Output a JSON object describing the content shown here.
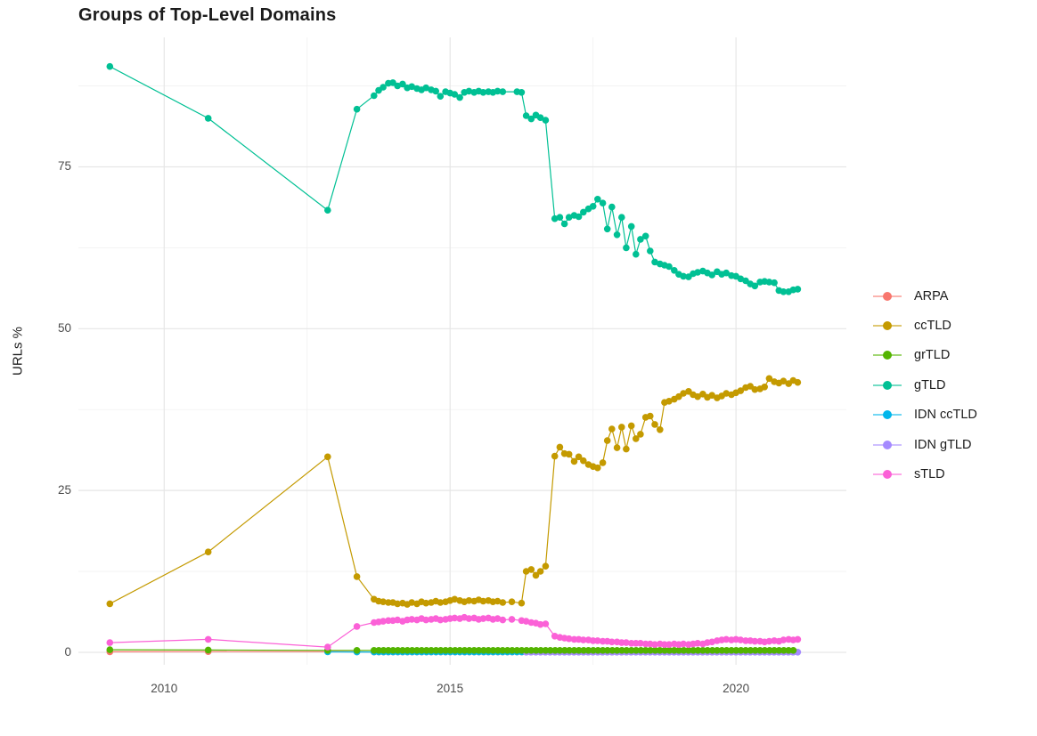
{
  "chart_data": {
    "type": "line",
    "title": "Groups of Top-Level Domains",
    "xlabel": "",
    "ylabel": "URLs %",
    "xlim": [
      2008.5,
      2021.93
    ],
    "ylim": [
      -1.93,
      95
    ],
    "grid": "on",
    "legend_position": "right",
    "x_ticks": [
      2010,
      2015,
      2020
    ],
    "x_tick_labels": [
      "2010",
      "2015",
      "2020"
    ],
    "x_minor_ticks": [
      2012.5,
      2017.5
    ],
    "y_ticks": [
      0,
      25,
      50,
      75
    ],
    "y_tick_labels": [
      "0",
      "25",
      "50",
      "75"
    ],
    "y_minor_ticks": [
      12.5,
      37.5,
      62.5,
      87.5
    ],
    "series": [
      {
        "name": "ARPA",
        "color": "#F8766D",
        "points": [
          [
            2009.05,
            0.08
          ],
          [
            2010.77,
            0.1
          ],
          [
            2012.86,
            0.1
          ],
          [
            2013.37,
            0.08
          ]
        ],
        "runs": [
          {
            "from": 2013.67,
            "to": 2021.08,
            "step": 0.08333,
            "value": 0.05
          }
        ]
      },
      {
        "name": "ccTLD",
        "color": "#C49A00",
        "points": [
          [
            2009.05,
            7.5
          ],
          [
            2010.77,
            15.5
          ],
          [
            2012.86,
            30.2
          ],
          [
            2013.37,
            11.7
          ],
          [
            2013.67,
            8.2
          ],
          [
            2013.75,
            7.9
          ],
          [
            2013.83,
            7.8
          ],
          [
            2013.92,
            7.7
          ],
          [
            2014,
            7.7
          ],
          [
            2014.08,
            7.5
          ],
          [
            2014.17,
            7.6
          ],
          [
            2014.25,
            7.4
          ],
          [
            2014.33,
            7.7
          ],
          [
            2014.42,
            7.5
          ],
          [
            2014.5,
            7.8
          ],
          [
            2014.58,
            7.6
          ],
          [
            2014.67,
            7.7
          ],
          [
            2014.75,
            7.9
          ],
          [
            2014.83,
            7.7
          ],
          [
            2014.92,
            7.8
          ],
          [
            2015,
            8.0
          ],
          [
            2015.08,
            8.2
          ],
          [
            2015.17,
            8.0
          ],
          [
            2015.25,
            7.8
          ],
          [
            2015.33,
            8.0
          ],
          [
            2015.42,
            7.9
          ],
          [
            2015.5,
            8.1
          ],
          [
            2015.58,
            7.9
          ],
          [
            2015.67,
            8.0
          ],
          [
            2015.75,
            7.8
          ],
          [
            2015.83,
            7.9
          ],
          [
            2015.92,
            7.7
          ],
          [
            2016.08,
            7.8
          ],
          [
            2016.25,
            7.6
          ],
          [
            2016.33,
            12.5
          ],
          [
            2016.42,
            12.8
          ],
          [
            2016.5,
            11.9
          ],
          [
            2016.58,
            12.5
          ],
          [
            2016.67,
            13.3
          ],
          [
            2016.83,
            30.3
          ],
          [
            2016.92,
            31.7
          ],
          [
            2017,
            30.7
          ],
          [
            2017.08,
            30.6
          ],
          [
            2017.17,
            29.5
          ],
          [
            2017.25,
            30.2
          ],
          [
            2017.33,
            29.6
          ],
          [
            2017.42,
            29.0
          ],
          [
            2017.5,
            28.7
          ],
          [
            2017.58,
            28.5
          ],
          [
            2017.67,
            29.3
          ],
          [
            2017.75,
            32.7
          ],
          [
            2017.83,
            34.5
          ],
          [
            2017.92,
            31.6
          ],
          [
            2018,
            34.8
          ],
          [
            2018.08,
            31.4
          ],
          [
            2018.17,
            35.0
          ],
          [
            2018.25,
            33.0
          ],
          [
            2018.33,
            33.7
          ],
          [
            2018.42,
            36.3
          ],
          [
            2018.5,
            36.5
          ],
          [
            2018.58,
            35.2
          ],
          [
            2018.67,
            34.4
          ],
          [
            2018.75,
            38.6
          ],
          [
            2018.83,
            38.8
          ],
          [
            2018.92,
            39.1
          ],
          [
            2019,
            39.5
          ],
          [
            2019.08,
            40.0
          ],
          [
            2019.17,
            40.3
          ],
          [
            2019.25,
            39.8
          ],
          [
            2019.33,
            39.5
          ],
          [
            2019.42,
            39.9
          ],
          [
            2019.5,
            39.4
          ],
          [
            2019.58,
            39.7
          ],
          [
            2019.67,
            39.3
          ],
          [
            2019.75,
            39.6
          ],
          [
            2019.83,
            40.0
          ],
          [
            2019.92,
            39.8
          ],
          [
            2020,
            40.1
          ],
          [
            2020.08,
            40.4
          ],
          [
            2020.17,
            40.9
          ],
          [
            2020.25,
            41.1
          ],
          [
            2020.33,
            40.6
          ],
          [
            2020.42,
            40.7
          ],
          [
            2020.5,
            41.0
          ],
          [
            2020.58,
            42.3
          ],
          [
            2020.67,
            41.8
          ],
          [
            2020.75,
            41.6
          ],
          [
            2020.83,
            41.9
          ],
          [
            2020.92,
            41.5
          ],
          [
            2021,
            42.0
          ],
          [
            2021.08,
            41.7
          ]
        ]
      },
      {
        "name": "grTLD",
        "color": "#53B400",
        "points": [
          [
            2009.05,
            0.4
          ],
          [
            2010.77,
            0.35
          ],
          [
            2012.86,
            0.3
          ],
          [
            2013.37,
            0.3
          ]
        ],
        "runs": [
          {
            "from": 2013.67,
            "to": 2021.08,
            "step": 0.08333,
            "value": 0.3
          }
        ]
      },
      {
        "name": "gTLD",
        "color": "#00C094",
        "points": [
          [
            2009.05,
            90.5
          ],
          [
            2010.77,
            82.5
          ],
          [
            2012.86,
            68.3
          ],
          [
            2013.37,
            83.9
          ],
          [
            2013.67,
            86.0
          ],
          [
            2013.75,
            86.8
          ],
          [
            2013.83,
            87.3
          ],
          [
            2013.92,
            87.9
          ],
          [
            2014,
            88.0
          ],
          [
            2014.08,
            87.5
          ],
          [
            2014.17,
            87.8
          ],
          [
            2014.25,
            87.2
          ],
          [
            2014.33,
            87.4
          ],
          [
            2014.42,
            87.1
          ],
          [
            2014.5,
            86.9
          ],
          [
            2014.58,
            87.2
          ],
          [
            2014.67,
            86.9
          ],
          [
            2014.75,
            86.7
          ],
          [
            2014.83,
            85.9
          ],
          [
            2014.92,
            86.6
          ],
          [
            2015,
            86.4
          ],
          [
            2015.08,
            86.2
          ],
          [
            2015.17,
            85.7
          ],
          [
            2015.25,
            86.5
          ],
          [
            2015.33,
            86.7
          ],
          [
            2015.42,
            86.5
          ],
          [
            2015.5,
            86.7
          ],
          [
            2015.58,
            86.5
          ],
          [
            2015.67,
            86.6
          ],
          [
            2015.75,
            86.5
          ],
          [
            2015.83,
            86.7
          ],
          [
            2015.92,
            86.6
          ],
          [
            2016.17,
            86.6
          ],
          [
            2016.25,
            86.5
          ],
          [
            2016.33,
            82.9
          ],
          [
            2016.42,
            82.4
          ],
          [
            2016.5,
            83.0
          ],
          [
            2016.58,
            82.6
          ],
          [
            2016.67,
            82.2
          ],
          [
            2016.83,
            67.0
          ],
          [
            2016.92,
            67.2
          ],
          [
            2017,
            66.2
          ],
          [
            2017.08,
            67.2
          ],
          [
            2017.17,
            67.5
          ],
          [
            2017.25,
            67.3
          ],
          [
            2017.33,
            68.0
          ],
          [
            2017.42,
            68.5
          ],
          [
            2017.5,
            68.9
          ],
          [
            2017.58,
            70.0
          ],
          [
            2017.67,
            69.4
          ],
          [
            2017.75,
            65.4
          ],
          [
            2017.83,
            68.8
          ],
          [
            2017.92,
            64.5
          ],
          [
            2018,
            67.2
          ],
          [
            2018.08,
            62.5
          ],
          [
            2018.17,
            65.8
          ],
          [
            2018.25,
            61.5
          ],
          [
            2018.33,
            63.8
          ],
          [
            2018.42,
            64.3
          ],
          [
            2018.5,
            62.0
          ],
          [
            2018.58,
            60.3
          ],
          [
            2018.67,
            60.0
          ],
          [
            2018.75,
            59.8
          ],
          [
            2018.83,
            59.6
          ],
          [
            2018.92,
            59.0
          ],
          [
            2019,
            58.4
          ],
          [
            2019.08,
            58.1
          ],
          [
            2019.17,
            58.0
          ],
          [
            2019.25,
            58.5
          ],
          [
            2019.33,
            58.7
          ],
          [
            2019.42,
            58.9
          ],
          [
            2019.5,
            58.6
          ],
          [
            2019.58,
            58.3
          ],
          [
            2019.67,
            58.8
          ],
          [
            2019.75,
            58.4
          ],
          [
            2019.83,
            58.6
          ],
          [
            2019.92,
            58.2
          ],
          [
            2020,
            58.1
          ],
          [
            2020.08,
            57.7
          ],
          [
            2020.17,
            57.4
          ],
          [
            2020.25,
            56.9
          ],
          [
            2020.33,
            56.6
          ],
          [
            2020.42,
            57.2
          ],
          [
            2020.5,
            57.3
          ],
          [
            2020.58,
            57.2
          ],
          [
            2020.67,
            57.1
          ],
          [
            2020.75,
            55.9
          ],
          [
            2020.83,
            55.7
          ],
          [
            2020.92,
            55.7
          ],
          [
            2021,
            56.0
          ],
          [
            2021.08,
            56.1
          ]
        ]
      },
      {
        "name": "IDN ccTLD",
        "color": "#00B6EB",
        "points": [
          [
            2012.86,
            0.06
          ],
          [
            2013.37,
            0.05
          ]
        ],
        "runs": [
          {
            "from": 2013.67,
            "to": 2021.08,
            "step": 0.08333,
            "value": 0.05
          }
        ]
      },
      {
        "name": "IDN gTLD",
        "color": "#A58AFF",
        "points": [],
        "runs": [
          {
            "from": 2016.33,
            "to": 2021.08,
            "step": 0.08333,
            "value": 0.02
          }
        ]
      },
      {
        "name": "sTLD",
        "color": "#FB61D7",
        "points": [
          [
            2009.05,
            1.5
          ],
          [
            2010.77,
            2.0
          ],
          [
            2012.86,
            0.8
          ],
          [
            2013.37,
            4.0
          ],
          [
            2013.67,
            4.6
          ],
          [
            2013.75,
            4.7
          ],
          [
            2013.83,
            4.8
          ],
          [
            2013.92,
            4.9
          ],
          [
            2014,
            4.9
          ],
          [
            2014.08,
            5.0
          ],
          [
            2014.17,
            4.8
          ],
          [
            2014.25,
            5.0
          ],
          [
            2014.33,
            5.1
          ],
          [
            2014.42,
            5.0
          ],
          [
            2014.5,
            5.2
          ],
          [
            2014.58,
            5.0
          ],
          [
            2014.67,
            5.1
          ],
          [
            2014.75,
            5.2
          ],
          [
            2014.83,
            5.0
          ],
          [
            2014.92,
            5.1
          ],
          [
            2015,
            5.2
          ],
          [
            2015.08,
            5.3
          ],
          [
            2015.17,
            5.2
          ],
          [
            2015.25,
            5.4
          ],
          [
            2015.33,
            5.2
          ],
          [
            2015.42,
            5.3
          ],
          [
            2015.5,
            5.1
          ],
          [
            2015.58,
            5.2
          ],
          [
            2015.67,
            5.3
          ],
          [
            2015.75,
            5.1
          ],
          [
            2015.83,
            5.2
          ],
          [
            2015.92,
            5.0
          ],
          [
            2016.08,
            5.1
          ],
          [
            2016.25,
            4.9
          ],
          [
            2016.33,
            4.8
          ],
          [
            2016.42,
            4.6
          ],
          [
            2016.5,
            4.5
          ],
          [
            2016.58,
            4.3
          ],
          [
            2016.67,
            4.4
          ],
          [
            2016.83,
            2.5
          ],
          [
            2016.92,
            2.3
          ],
          [
            2017,
            2.2
          ],
          [
            2017.08,
            2.1
          ],
          [
            2017.17,
            2.0
          ],
          [
            2017.25,
            2.0
          ],
          [
            2017.33,
            1.9
          ],
          [
            2017.42,
            1.9
          ],
          [
            2017.5,
            1.8
          ],
          [
            2017.58,
            1.8
          ],
          [
            2017.67,
            1.7
          ],
          [
            2017.75,
            1.7
          ],
          [
            2017.83,
            1.6
          ],
          [
            2017.92,
            1.6
          ],
          [
            2018,
            1.5
          ],
          [
            2018.08,
            1.5
          ],
          [
            2018.17,
            1.4
          ],
          [
            2018.25,
            1.4
          ],
          [
            2018.33,
            1.4
          ],
          [
            2018.42,
            1.3
          ],
          [
            2018.5,
            1.3
          ],
          [
            2018.58,
            1.2
          ],
          [
            2018.67,
            1.3
          ],
          [
            2018.75,
            1.2
          ],
          [
            2018.83,
            1.2
          ],
          [
            2018.92,
            1.3
          ],
          [
            2019,
            1.2
          ],
          [
            2019.08,
            1.3
          ],
          [
            2019.17,
            1.2
          ],
          [
            2019.25,
            1.3
          ],
          [
            2019.33,
            1.4
          ],
          [
            2019.42,
            1.3
          ],
          [
            2019.5,
            1.5
          ],
          [
            2019.58,
            1.6
          ],
          [
            2019.67,
            1.8
          ],
          [
            2019.75,
            1.9
          ],
          [
            2019.83,
            2.0
          ],
          [
            2019.92,
            1.9
          ],
          [
            2020,
            2.0
          ],
          [
            2020.08,
            1.9
          ],
          [
            2020.17,
            1.8
          ],
          [
            2020.25,
            1.8
          ],
          [
            2020.33,
            1.7
          ],
          [
            2020.42,
            1.7
          ],
          [
            2020.5,
            1.6
          ],
          [
            2020.58,
            1.7
          ],
          [
            2020.67,
            1.8
          ],
          [
            2020.75,
            1.7
          ],
          [
            2020.83,
            1.9
          ],
          [
            2020.92,
            2.0
          ],
          [
            2021,
            1.9
          ],
          [
            2021.08,
            2.0
          ]
        ]
      }
    ],
    "style_colors": {
      "grid_major": "#E6E6E6",
      "grid_minor": "#F0F0F0",
      "axis_text": "#4d4d4d",
      "title_text": "#1b1b1b"
    }
  }
}
